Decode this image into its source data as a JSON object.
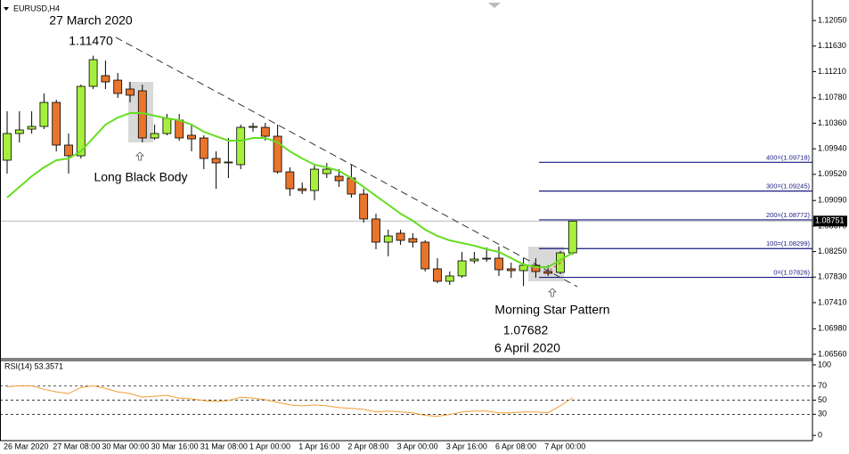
{
  "chart_data": [
    {
      "type": "candlestick",
      "title": "EURUSD,H4",
      "categories": [
        "26 Mar 2020",
        null,
        null,
        null,
        "27 Mar 08:00",
        null,
        null,
        null,
        "30 Mar 00:00",
        null,
        null,
        null,
        "30 Mar 16:00",
        null,
        null,
        null,
        "31 Mar 08:00",
        null,
        null,
        null,
        "1 Apr 00:00",
        null,
        null,
        null,
        "1 Apr 16:00",
        null,
        null,
        null,
        "2 Apr 08:00",
        null,
        null,
        null,
        "3 Apr 00:00",
        null,
        null,
        null,
        "3 Apr 16:00",
        null,
        null,
        null,
        "6 Apr 08:00",
        null,
        null,
        null,
        "7 Apr 00:00",
        null,
        null
      ],
      "open": [
        1.09752,
        1.10191,
        1.10264,
        1.10308,
        1.10703,
        1.10001,
        1.09825,
        1.10967,
        1.11143,
        1.11069,
        1.10923,
        1.10894,
        1.10118,
        1.10191,
        1.10411,
        1.10162,
        1.10118,
        1.09781,
        1.09708,
        1.09679,
        1.10293,
        1.10293,
        1.10147,
        1.09561,
        1.09283,
        1.09254,
        1.09532,
        1.09488,
        1.09459,
        1.09195,
        1.08786,
        1.08405,
        1.08551,
        1.08463,
        1.08405,
        1.07966,
        1.07761,
        1.07849,
        1.08097,
        1.08127,
        1.08141,
        1.07966,
        1.07936,
        1.08024,
        1.07922,
        1.07907,
        1.08229
      ],
      "high": [
        1.10557,
        1.10557,
        1.10557,
        1.1085,
        1.10747,
        1.10191,
        1.10996,
        1.1147,
        1.11391,
        1.11187,
        1.1104,
        1.10996,
        1.10337,
        1.10513,
        1.10513,
        1.10337,
        1.10162,
        1.09898,
        1.10118,
        1.10337,
        1.10367,
        1.10367,
        1.10337,
        1.09635,
        1.09386,
        1.09679,
        1.09708,
        1.09605,
        1.09679,
        1.09283,
        1.08873,
        1.0861,
        1.0861,
        1.08551,
        1.08434,
        1.08141,
        1.07922,
        1.08244,
        1.08244,
        1.08317,
        1.08332,
        1.08068,
        1.08141,
        1.08141,
        1.08024,
        1.08259,
        1.08756
      ],
      "low": [
        1.09532,
        1.10045,
        1.10191,
        1.10264,
        1.09898,
        1.09532,
        1.09781,
        1.10923,
        1.10923,
        1.10777,
        1.10703,
        1.10045,
        1.10089,
        1.10162,
        1.10074,
        1.09898,
        1.09605,
        1.09283,
        1.09459,
        1.09605,
        1.1022,
        1.10074,
        1.09532,
        1.09166,
        1.09195,
        1.09093,
        1.09459,
        1.09313,
        1.09137,
        1.08727,
        1.08288,
        1.08171,
        1.08361,
        1.08317,
        1.07922,
        1.07732,
        1.07702,
        1.07819,
        1.08054,
        1.08083,
        1.07849,
        1.07819,
        1.07682,
        1.07819,
        1.07849,
        1.07878,
        1.082
      ],
      "close": [
        1.10191,
        1.1025,
        1.10308,
        1.10703,
        1.10001,
        1.09825,
        1.10967,
        1.11406,
        1.1104,
        1.1085,
        1.10821,
        1.10118,
        1.10191,
        1.1044,
        1.10118,
        1.10103,
        1.09781,
        1.09708,
        1.09723,
        1.10293,
        1.10308,
        1.10147,
        1.09561,
        1.09283,
        1.09254,
        1.09605,
        1.09605,
        1.09415,
        1.09195,
        1.08786,
        1.08405,
        1.08507,
        1.08434,
        1.08405,
        1.07966,
        1.07761,
        1.07849,
        1.08097,
        1.08127,
        1.08141,
        1.07951,
        1.07936,
        1.08024,
        1.07922,
        1.07893,
        1.08229,
        1.08751
      ],
      "up_color": "#a6ef3c",
      "down_color": "#e8752c",
      "ma": {
        "color": "#66dd22",
        "values": [
          1.09137,
          1.09313,
          1.09488,
          1.09635,
          1.09752,
          1.09781,
          1.09898,
          1.10118,
          1.10337,
          1.10454,
          1.10527,
          1.10527,
          1.10484,
          1.1044,
          1.10411,
          1.10337,
          1.1022,
          1.10147,
          1.10074,
          1.10074,
          1.10118,
          1.10118,
          1.10045,
          1.09898,
          1.09781,
          1.09679,
          1.09635,
          1.09576,
          1.09459,
          1.09313,
          1.09166,
          1.0902,
          1.08873,
          1.08756,
          1.0861,
          1.08507,
          1.08434,
          1.0839,
          1.08346,
          1.08288,
          1.08244,
          1.08141,
          1.08039,
          1.07995,
          1.07995,
          1.08112,
          1.08229
        ]
      },
      "ylim": [
        1.06487,
        1.12314
      ],
      "yticks": [
        {
          "value": 1.1205,
          "label": "1.12050"
        },
        {
          "value": 1.1163,
          "label": "1.11630"
        },
        {
          "value": 1.1121,
          "label": "1.11210"
        },
        {
          "value": 1.1078,
          "label": "1.10780"
        },
        {
          "value": 1.1036,
          "label": "1.10360"
        },
        {
          "value": 1.0994,
          "label": "1.09940"
        },
        {
          "value": 1.0952,
          "label": "1.09520"
        },
        {
          "value": 1.0909,
          "label": "1.09090"
        },
        {
          "value": 1.0867,
          "label": "1.08670"
        },
        {
          "value": 1.0825,
          "label": "1.08250"
        },
        {
          "value": 1.0783,
          "label": "1.07830"
        },
        {
          "value": 1.0741,
          "label": "1.07410"
        },
        {
          "value": 1.0698,
          "label": "1.06980"
        },
        {
          "value": 1.0656,
          "label": "1.06560"
        }
      ],
      "current_price": {
        "value": 1.08751,
        "label": "1.08751"
      },
      "fib_levels": {
        "color": "#1a1a80",
        "levels": [
          {
            "value": 1.07826,
            "label": "0=(1.07826)"
          },
          {
            "value": 1.08299,
            "label": "100=(1.08299)"
          },
          {
            "value": 1.08772,
            "label": "200=(1.08772)"
          },
          {
            "value": 1.09245,
            "label": "300=(1.09245)"
          },
          {
            "value": 1.09718,
            "label": "400=(1.09718)"
          }
        ]
      },
      "annotations": [
        "27 March 2020",
        "1.11470",
        "Long Black Body",
        "Morning Star Pattern",
        "1.07682",
        "6 April 2020"
      ]
    },
    {
      "type": "line",
      "title": "RSI(14) 53.3571",
      "color": "#f39c34",
      "values": [
        69.1,
        70.4,
        70.4,
        65.4,
        61.7,
        59.3,
        67.9,
        70.4,
        66.7,
        61.7,
        59.3,
        54.3,
        55.6,
        56.8,
        53.1,
        51.9,
        49.4,
        48.1,
        49.4,
        54.3,
        53.1,
        50.6,
        46.9,
        43.2,
        42.0,
        43.2,
        42.0,
        39.5,
        38.3,
        37.0,
        33.3,
        34.6,
        33.3,
        32.1,
        28.4,
        27.2,
        29.6,
        33.3,
        34.6,
        34.6,
        32.1,
        32.1,
        33.3,
        33.3,
        32.1,
        42.0,
        53.3571
      ],
      "ylim": [
        -7.4,
        106.2
      ],
      "yticks": [
        100,
        70,
        50,
        30,
        0
      ]
    }
  ]
}
